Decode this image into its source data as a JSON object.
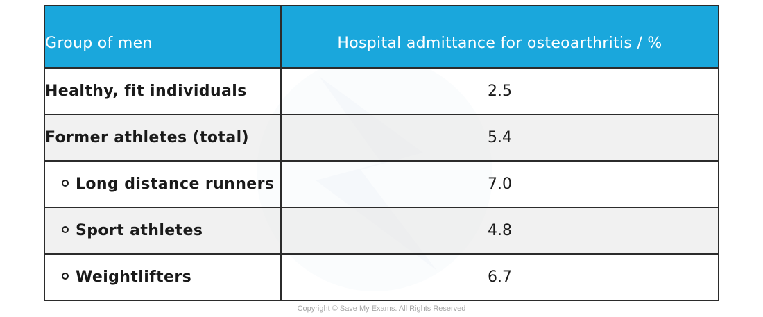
{
  "table": {
    "headers": {
      "group": "Group of men",
      "value": "Hospital admittance for osteoarthritis / %"
    },
    "rows": [
      {
        "group": "Healthy, fit individuals",
        "value": "2.5",
        "bullet": false
      },
      {
        "group": "Former athletes (total)",
        "value": "5.4",
        "bullet": false
      },
      {
        "group": "Long distance runners",
        "value": "7.0",
        "bullet": true
      },
      {
        "group": "Sport athletes",
        "value": "4.8",
        "bullet": true
      },
      {
        "group": "Weightlifters",
        "value": "6.7",
        "bullet": true
      }
    ]
  },
  "copyright": "Copyright © Save My Exams. All Rights Reserved",
  "colors": {
    "header_bg": "#1aa7dc",
    "header_text": "#ffffff",
    "alt_row_bg": "#eeeeee",
    "border": "#2b2b2b"
  }
}
